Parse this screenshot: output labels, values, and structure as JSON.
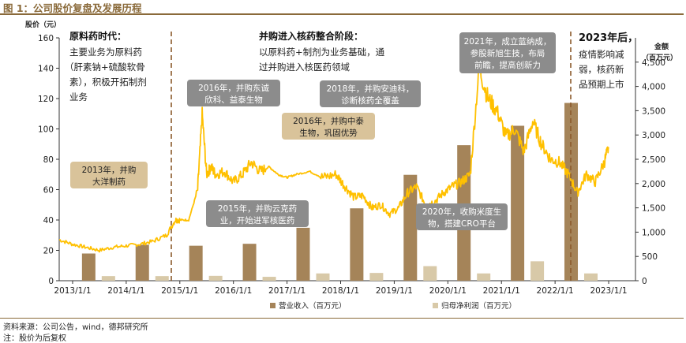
{
  "header": {
    "title": "图 1：公司股价复盘及发展历程"
  },
  "footer": {
    "source": "资料来源：公司公告，wind，德邦研究所",
    "note": "注：股价为后复权"
  },
  "colors": {
    "accent": "#8a6a3a",
    "revenue_bar": "#a58459",
    "profit_bar": "#d8c9a8",
    "price_line": "#ffc000",
    "beige_box": "#d9c39a",
    "gray_box": "#8c8c8c",
    "divider": "#8b5a2b"
  },
  "chart_data": {
    "type": "bar+line",
    "title": "",
    "left_axis": {
      "unit": "股价（元）",
      "range": [
        0,
        160
      ],
      "ticks": [
        "0",
        "20",
        "40",
        "60",
        "80",
        "100",
        "120",
        "140",
        "160"
      ]
    },
    "right_axis": {
      "unit_line1": "金额",
      "unit_line2": "（百万元）",
      "range": [
        0,
        5000
      ],
      "ticks": [
        "0",
        "500",
        "1,000",
        "1,500",
        "2,000",
        "2,500",
        "3,000",
        "3,500",
        "4,000",
        "4,500"
      ]
    },
    "x_axis": {
      "ticks": [
        "2013/1/1",
        "2014/1/1",
        "2015/1/1",
        "2016/1/1",
        "2017/1/1",
        "2018/1/1",
        "2019/1/1",
        "2020/1/1",
        "2021/1/1",
        "2022/1/1",
        "2023/1/1"
      ]
    },
    "grid": false,
    "legend_position": "bottom",
    "series": [
      {
        "name": "营业收入（百万元）",
        "type": "bar",
        "axis": "right",
        "x": [
          2013,
          2014,
          2015,
          2016,
          2017,
          2018,
          2019,
          2020,
          2021,
          2022
        ],
        "values": [
          560,
          740,
          720,
          760,
          1090,
          1490,
          2180,
          2790,
          3190,
          3660
        ]
      },
      {
        "name": "归母净利润（百万元）",
        "type": "bar",
        "axis": "right",
        "x": [
          2013,
          2014,
          2015,
          2016,
          2017,
          2018,
          2019,
          2020,
          2021,
          2022
        ],
        "values": [
          95,
          95,
          100,
          80,
          150,
          160,
          300,
          150,
          400,
          150
        ]
      },
      {
        "name": "股价",
        "type": "line",
        "axis": "left",
        "x": [
          "2012/10/1",
          "2013/1/1",
          "2013/4/1",
          "2013/7/1",
          "2013/10/1",
          "2014/1/1",
          "2014/4/1",
          "2014/7/1",
          "2014/10/1",
          "2014/12/1",
          "2015/1/1",
          "2015/3/1",
          "2015/5/1",
          "2015/6/1",
          "2015/7/1",
          "2015/8/1",
          "2015/9/1",
          "2015/11/1",
          "2016/1/1",
          "2016/3/1",
          "2016/5/1",
          "2016/7/1",
          "2016/9/1",
          "2016/11/1",
          "2017/1/1",
          "2017/3/1",
          "2017/6/1",
          "2017/9/1",
          "2017/12/1",
          "2018/2/1",
          "2018/4/1",
          "2018/6/1",
          "2018/8/1",
          "2018/10/1",
          "2018/12/1",
          "2019/2/1",
          "2019/4/1",
          "2019/6/1",
          "2019/8/1",
          "2019/10/1",
          "2019/12/1",
          "2020/2/1",
          "2020/4/1",
          "2020/6/1",
          "2020/8/1",
          "2020/10/1",
          "2020/12/1",
          "2021/2/1",
          "2021/4/1",
          "2021/6/1",
          "2021/8/1",
          "2021/10/1",
          "2021/12/1",
          "2022/2/1",
          "2022/4/1",
          "2022/6/1",
          "2022/8/1",
          "2022/10/1",
          "2022/12/1",
          "2023/1/1"
        ],
        "values": [
          27,
          24,
          22,
          20,
          22,
          23,
          24,
          26,
          30,
          40,
          40,
          40,
          60,
          110,
          70,
          75,
          70,
          72,
          65,
          70,
          78,
          72,
          75,
          70,
          68,
          70,
          72,
          68,
          70,
          62,
          55,
          56,
          48,
          50,
          44,
          48,
          58,
          62,
          50,
          52,
          58,
          62,
          65,
          70,
          140,
          120,
          112,
          95,
          100,
          85,
          105,
          90,
          80,
          78,
          70,
          58,
          70,
          65,
          78,
          88
        ]
      }
    ],
    "annotations": {
      "phase1": {
        "title": "原料药时代：",
        "lines": [
          "主要业务为原料药",
          "（肝素钠+硫酸软骨",
          "素），积极开拓制剂",
          "业务"
        ]
      },
      "phase2": {
        "title": "并购进入核药整合阶段：",
        "lines": [
          "以原料药+制剂为业务基础，通",
          "过并购进入核医药领域"
        ]
      },
      "phase3": {
        "title": "2023年后，",
        "lines": [
          "疫情影响减",
          "弱，核药新",
          "品预期上市"
        ]
      },
      "box_2013": [
        "2013年，并购",
        "大洋制药"
      ],
      "box_2016a": [
        "2016年，并购东诚",
        "欣科、益泰生物"
      ],
      "box_2016b": [
        "2016年，并购中泰",
        "生物，巩固优势"
      ],
      "box_2015": [
        "2015年，并购云克药",
        "业，开始进军核医药"
      ],
      "box_2018": [
        "2018年，并购安迪科，",
        "诊断核药全覆盖"
      ],
      "box_2020": [
        "2020年，收购米度生",
        "物，搭建CRO平台"
      ],
      "box_2021": [
        "2021年，成立蓝纳成，",
        "参股新旭生技，布局",
        "前瞻，提高创新力"
      ]
    }
  }
}
